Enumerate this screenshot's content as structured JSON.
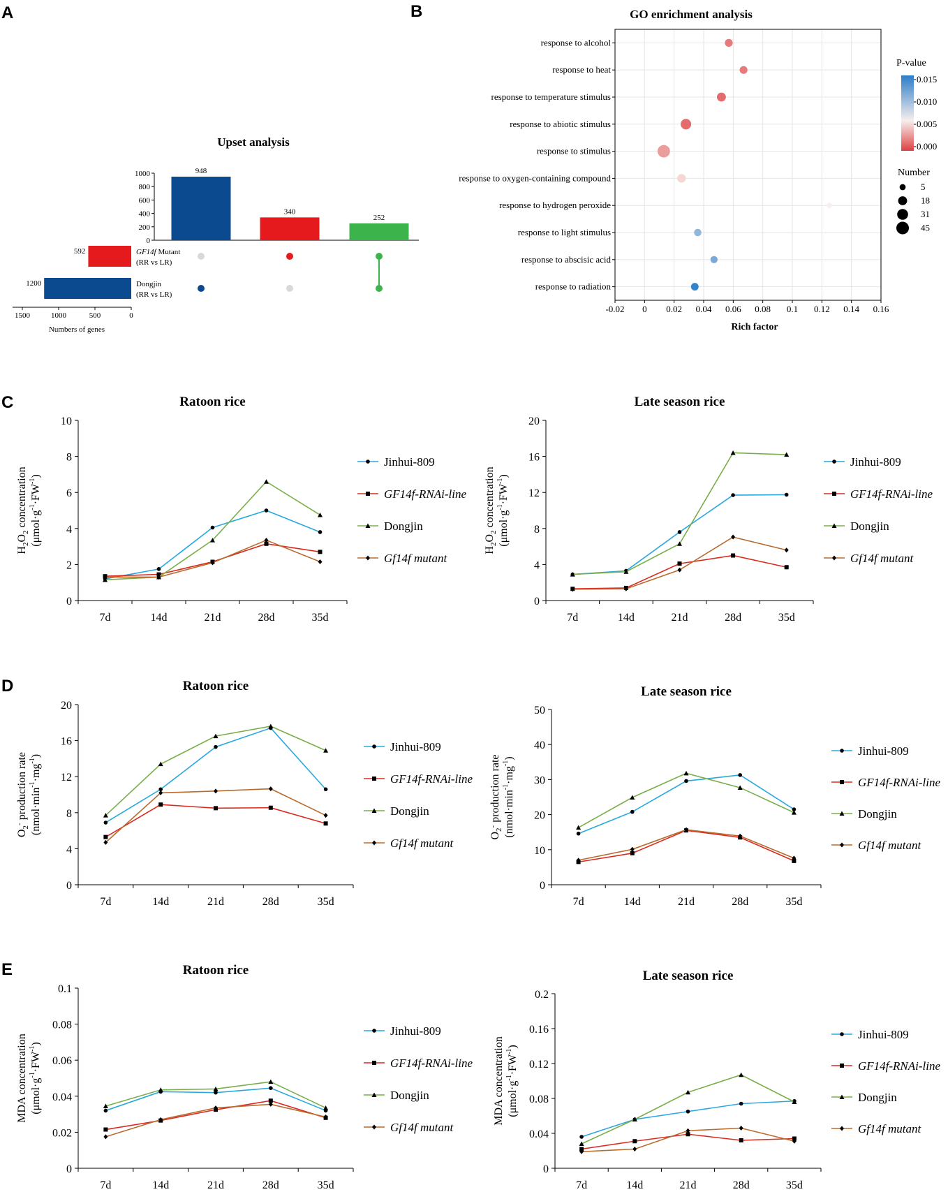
{
  "colors": {
    "blue_dark": "#0b4a8f",
    "red": "#e41a1c",
    "green": "#3cb44b",
    "grey": "#d9d9d9",
    "line_jinhui": "#29a8e0",
    "line_rnai": "#d92b1f",
    "line_dongjin": "#7aae4a",
    "line_mutant": "#b86b2d",
    "grid": "#e6e6e6"
  },
  "panels": {
    "A": {
      "letter": "A"
    },
    "B": {
      "letter": "B"
    },
    "C": {
      "letter": "C"
    },
    "D": {
      "letter": "D"
    },
    "E": {
      "letter": "E"
    }
  },
  "chart_data": [
    {
      "id": "upset",
      "type": "bar",
      "title": "Upset analysis",
      "intersections": [
        {
          "value": 948,
          "label": "948",
          "sets": [
            "Dongjin"
          ],
          "color": "#0b4a8f"
        },
        {
          "value": 340,
          "label": "340",
          "sets": [
            "GF14f Mutant"
          ],
          "color": "#e41a1c"
        },
        {
          "value": 252,
          "label": "252",
          "sets": [
            "GF14f Mutant",
            "Dongjin"
          ],
          "color": "#3cb44b"
        }
      ],
      "bar_yticks": [
        "0",
        "200",
        "400",
        "600",
        "800",
        "1000"
      ],
      "bar_ylim": [
        0,
        1000
      ],
      "sets": [
        {
          "name_italic": "GF14f",
          "name_rest": " Mutant",
          "sub": "(RR vs LR)",
          "size": 592,
          "size_label": "592",
          "color": "#e41a1c"
        },
        {
          "name_italic": "",
          "name_rest": "Dongjin",
          "sub": "(RR vs LR)",
          "size": 1200,
          "size_label": "1200",
          "color": "#0b4a8f"
        }
      ],
      "set_xticks": [
        "1500",
        "1000",
        "500",
        "0"
      ],
      "set_xlim": [
        0,
        1500
      ],
      "set_xlabel": "Numbers of genes"
    },
    {
      "id": "go",
      "type": "scatter",
      "title": "GO enrichment analysis",
      "xlabel": "Rich factor",
      "xlim": [
        -0.02,
        0.16
      ],
      "xticks": [
        "-0.02",
        "0",
        "0.02",
        "0.04",
        "0.06",
        "0.08",
        "0.1",
        "0.12",
        "0.14",
        "0.16"
      ],
      "terms": [
        {
          "term": "response to alcohol",
          "rich": 0.057,
          "p": 0.002,
          "n": 12
        },
        {
          "term": "response to heat",
          "rich": 0.067,
          "p": 0.002,
          "n": 12
        },
        {
          "term": "response to temperature stimulus",
          "rich": 0.052,
          "p": 0.0015,
          "n": 18
        },
        {
          "term": "response to abiotic stimulus",
          "rich": 0.028,
          "p": 0.0015,
          "n": 28
        },
        {
          "term": "response to stimulus",
          "rich": 0.013,
          "p": 0.0032,
          "n": 44
        },
        {
          "term": "response to oxygen-containing compound",
          "rich": 0.025,
          "p": 0.0052,
          "n": 16
        },
        {
          "term": "response to hydrogen peroxide",
          "rich": 0.125,
          "p": 0.006,
          "n": 3
        },
        {
          "term": "response to light stimulus",
          "rich": 0.036,
          "p": 0.0105,
          "n": 10
        },
        {
          "term": "response to abscisic acid",
          "rich": 0.047,
          "p": 0.0115,
          "n": 9
        },
        {
          "term": "response to radiation",
          "rich": 0.034,
          "p": 0.0145,
          "n": 11
        }
      ],
      "pvalue_legend": {
        "title": "P-value",
        "ticks": [
          "0.015",
          "0.010",
          "0.005",
          "0.000"
        ]
      },
      "size_legend": {
        "title": "Number",
        "values": [
          5,
          18,
          31,
          45
        ],
        "labels": [
          "5",
          "18",
          "31",
          "45"
        ]
      }
    },
    {
      "id": "c-left",
      "type": "line",
      "title": "Ratoon rice",
      "ylabel_lines": [
        "H2O2 concentration",
        "(μmol·g-1·FW-1)"
      ],
      "ylim": [
        0,
        10
      ],
      "yticks": [
        "0",
        "2",
        "4",
        "6",
        "8",
        "10"
      ],
      "categories": [
        "7d",
        "14d",
        "21d",
        "28d",
        "35d"
      ],
      "series": [
        {
          "name": "Jinhui-809",
          "italic": false,
          "marker": "circle",
          "values": [
            1.2,
            1.75,
            4.05,
            5.0,
            3.8
          ]
        },
        {
          "name": "GF14f-RNAi-line",
          "italic": true,
          "marker": "square",
          "values": [
            1.35,
            1.45,
            2.15,
            3.15,
            2.7
          ]
        },
        {
          "name": "Dongjin",
          "italic": false,
          "marker": "triangle",
          "values": [
            1.15,
            1.3,
            3.35,
            6.6,
            4.75
          ]
        },
        {
          "name": "Gf14f mutant",
          "italic": true,
          "marker": "diamond",
          "values": [
            1.3,
            1.3,
            2.1,
            3.35,
            2.15
          ]
        }
      ]
    },
    {
      "id": "c-right",
      "type": "line",
      "title": "Late season rice",
      "ylabel_lines": [
        "H2O2 concentration",
        "(μmol·g-1·FW-1)"
      ],
      "ylim": [
        0,
        20
      ],
      "yticks": [
        "0",
        "4",
        "8",
        "12",
        "16",
        "20"
      ],
      "categories": [
        "7d",
        "14d",
        "21d",
        "28d",
        "35d"
      ],
      "series": [
        {
          "name": "Jinhui-809",
          "italic": false,
          "marker": "circle",
          "values": [
            2.9,
            3.3,
            7.6,
            11.7,
            11.75
          ]
        },
        {
          "name": "GF14f-RNAi-line",
          "italic": true,
          "marker": "square",
          "values": [
            1.3,
            1.4,
            4.1,
            5.0,
            3.7
          ]
        },
        {
          "name": "Dongjin",
          "italic": false,
          "marker": "triangle",
          "values": [
            2.9,
            3.2,
            6.3,
            16.4,
            16.2
          ]
        },
        {
          "name": "Gf14f mutant",
          "italic": true,
          "marker": "diamond",
          "values": [
            1.25,
            1.3,
            3.4,
            7.05,
            5.6
          ]
        }
      ]
    },
    {
      "id": "d-left",
      "type": "line",
      "title": "Ratoon rice",
      "ylabel_lines": [
        "O2- production rate",
        "(nmol·min-1·mg-1)"
      ],
      "ylim": [
        0,
        20
      ],
      "yticks": [
        "0",
        "4",
        "8",
        "12",
        "16",
        "20"
      ],
      "categories": [
        "7d",
        "14d",
        "21d",
        "28d",
        "35d"
      ],
      "series": [
        {
          "name": "Jinhui-809",
          "italic": false,
          "marker": "circle",
          "values": [
            6.9,
            10.6,
            15.3,
            17.4,
            10.6
          ]
        },
        {
          "name": "GF14f-RNAi-line",
          "italic": true,
          "marker": "square",
          "values": [
            5.3,
            8.9,
            8.5,
            8.55,
            6.8
          ]
        },
        {
          "name": "Dongjin",
          "italic": false,
          "marker": "triangle",
          "values": [
            7.7,
            13.4,
            16.5,
            17.6,
            14.9
          ]
        },
        {
          "name": "Gf14f mutant",
          "italic": true,
          "marker": "diamond",
          "values": [
            4.7,
            10.2,
            10.4,
            10.65,
            7.7
          ]
        }
      ]
    },
    {
      "id": "d-right",
      "type": "line",
      "title": "Late season rice",
      "ylabel_lines": [
        "O2- production rate",
        "(nmol·min-1·mg-1)"
      ],
      "ylim": [
        0,
        50
      ],
      "yticks": [
        "0",
        "10",
        "20",
        "30",
        "40",
        "50"
      ],
      "categories": [
        "7d",
        "14d",
        "21d",
        "28d",
        "35d"
      ],
      "series": [
        {
          "name": "Jinhui-809",
          "italic": false,
          "marker": "circle",
          "values": [
            14.6,
            20.8,
            29.6,
            31.3,
            21.5
          ]
        },
        {
          "name": "GF14f-RNAi-line",
          "italic": true,
          "marker": "square",
          "values": [
            6.5,
            9.0,
            15.5,
            13.5,
            6.8
          ]
        },
        {
          "name": "Dongjin",
          "italic": false,
          "marker": "triangle",
          "values": [
            16.3,
            24.9,
            31.8,
            27.7,
            20.6
          ]
        },
        {
          "name": "Gf14f mutant",
          "italic": true,
          "marker": "diamond",
          "values": [
            7.0,
            10.1,
            15.7,
            13.9,
            7.6
          ]
        }
      ]
    },
    {
      "id": "e-left",
      "type": "line",
      "title": "Ratoon rice",
      "ylabel_lines": [
        "MDA concentration",
        "(μmol·g-1·FW-1)"
      ],
      "ylim": [
        0,
        0.1
      ],
      "yticks": [
        "0",
        "0.02",
        "0.04",
        "0.06",
        "0.08",
        "0.1"
      ],
      "categories": [
        "7d",
        "14d",
        "21d",
        "28d",
        "35d"
      ],
      "series": [
        {
          "name": "Jinhui-809",
          "italic": false,
          "marker": "circle",
          "values": [
            0.032,
            0.0425,
            0.042,
            0.0445,
            0.032
          ]
        },
        {
          "name": "GF14f-RNAi-line",
          "italic": true,
          "marker": "square",
          "values": [
            0.0215,
            0.0265,
            0.0325,
            0.0375,
            0.028
          ]
        },
        {
          "name": "Dongjin",
          "italic": false,
          "marker": "triangle",
          "values": [
            0.0345,
            0.0435,
            0.044,
            0.048,
            0.0335
          ]
        },
        {
          "name": "Gf14f mutant",
          "italic": true,
          "marker": "diamond",
          "values": [
            0.0175,
            0.027,
            0.0335,
            0.0355,
            0.0285
          ]
        }
      ]
    },
    {
      "id": "e-right",
      "type": "line",
      "title": "Late season rice",
      "ylabel_lines": [
        "MDA concentration",
        "(μmol·g-1·FW-1)"
      ],
      "ylim": [
        0,
        0.2
      ],
      "yticks": [
        "0",
        "0.04",
        "0.08",
        "0.12",
        "0.16",
        "0.2"
      ],
      "categories": [
        "7d",
        "14d",
        "21d",
        "28d",
        "35d"
      ],
      "series": [
        {
          "name": "Jinhui-809",
          "italic": false,
          "marker": "circle",
          "values": [
            0.036,
            0.056,
            0.065,
            0.074,
            0.077
          ]
        },
        {
          "name": "GF14f-RNAi-line",
          "italic": true,
          "marker": "square",
          "values": [
            0.022,
            0.031,
            0.039,
            0.032,
            0.034
          ]
        },
        {
          "name": "Dongjin",
          "italic": false,
          "marker": "triangle",
          "values": [
            0.028,
            0.056,
            0.087,
            0.107,
            0.076
          ]
        },
        {
          "name": "Gf14f mutant",
          "italic": true,
          "marker": "diamond",
          "values": [
            0.019,
            0.022,
            0.043,
            0.046,
            0.031
          ]
        }
      ]
    }
  ]
}
